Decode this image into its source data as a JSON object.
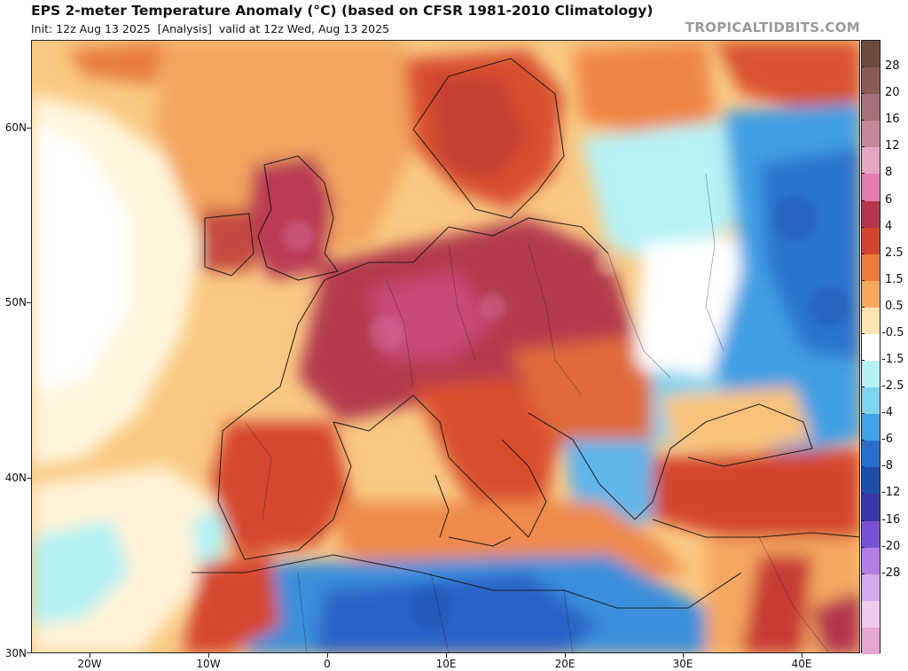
{
  "header": {
    "title": "EPS 2-meter Temperature Anomaly (°C) (based on CFSR 1981-2010 Climatology)",
    "init": "Init: 12z Aug 13 2025",
    "analysis": "[Analysis]",
    "valid": "valid at 12z Wed, Aug 13 2025",
    "source": "TROPICALTIDBITS.COM"
  },
  "axes": {
    "latitude_labels": [
      "60N",
      "50N",
      "40N",
      "30N"
    ],
    "longitude_labels": [
      "20W",
      "10W",
      "0",
      "10E",
      "20E",
      "30E",
      "40E"
    ]
  },
  "colorbar": {
    "labels": [
      "28",
      "20",
      "16",
      "12",
      "8",
      "6",
      "4",
      "2.5",
      "1.5",
      "0.5",
      "-0.5",
      "-1.5",
      "-2.5",
      "-4",
      "-6",
      "-8",
      "-12",
      "-16",
      "-20",
      "-28"
    ],
    "colors": [
      "#6e4a3c",
      "#8a5a55",
      "#a8707a",
      "#c5879a",
      "#e5a6c2",
      "#e37bb0",
      "#b3364e",
      "#d4452d",
      "#ec7a3c",
      "#f6a85d",
      "#fde3b0",
      "#ffffff",
      "#b6f2f4",
      "#7fd3ee",
      "#3fa3e6",
      "#2a6fce",
      "#1e4ea8",
      "#3a37a6",
      "#7a52d6",
      "#b47ee5",
      "#d8a8ee",
      "#f3c8ef",
      "#e4a6d0"
    ]
  },
  "legend_colors": {
    "strong_warm": "#b3364e",
    "warm": "#d4452d",
    "mild_warm": "#ec7a3c",
    "slight_warm": "#fde3b0",
    "near_zero": "#ffffff",
    "cool": "#7fd3ee",
    "cold": "#2a6fce"
  }
}
